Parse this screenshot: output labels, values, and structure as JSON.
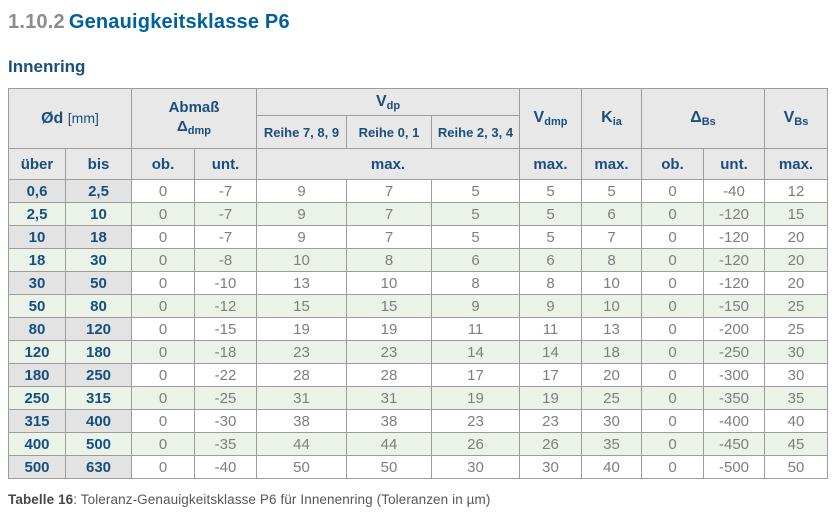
{
  "title": {
    "number": "1.10.2",
    "text": "Genauigkeitsklasse P6"
  },
  "section": {
    "heading": "Innenring"
  },
  "table": {
    "header": {
      "diameter": {
        "symbol": "Ød",
        "unit": "[mm]"
      },
      "abmass": {
        "line1": "Abmaß",
        "base": "Δ",
        "sub": "dmp"
      },
      "vdp": {
        "base": "V",
        "sub": "dp"
      },
      "reihe": [
        "Reihe 7, 8, 9",
        "Reihe 0, 1",
        "Reihe 2, 3, 4"
      ],
      "vdmp": {
        "base": "V",
        "sub": "dmp"
      },
      "kia": {
        "base": "K",
        "sub": "ia"
      },
      "dbs": {
        "base": "Δ",
        "sub": "Bs"
      },
      "vbs": {
        "base": "V",
        "sub": "Bs"
      }
    },
    "subheader": [
      "über",
      "bis",
      "ob.",
      "unt.",
      "max.",
      "max.",
      "max.",
      "ob.",
      "unt.",
      "max."
    ],
    "rows": [
      [
        "0,6",
        "2,5",
        "0",
        "-7",
        "9",
        "7",
        "5",
        "5",
        "5",
        "0",
        "-40",
        "12"
      ],
      [
        "2,5",
        "10",
        "0",
        "-7",
        "9",
        "7",
        "5",
        "5",
        "6",
        "0",
        "-120",
        "15"
      ],
      [
        "10",
        "18",
        "0",
        "-7",
        "9",
        "7",
        "5",
        "5",
        "7",
        "0",
        "-120",
        "20"
      ],
      [
        "18",
        "30",
        "0",
        "-8",
        "10",
        "8",
        "6",
        "6",
        "8",
        "0",
        "-120",
        "20"
      ],
      [
        "30",
        "50",
        "0",
        "-10",
        "13",
        "10",
        "8",
        "8",
        "10",
        "0",
        "-120",
        "20"
      ],
      [
        "50",
        "80",
        "0",
        "-12",
        "15",
        "15",
        "9",
        "9",
        "10",
        "0",
        "-150",
        "25"
      ],
      [
        "80",
        "120",
        "0",
        "-15",
        "19",
        "19",
        "11",
        "11",
        "13",
        "0",
        "-200",
        "25"
      ],
      [
        "120",
        "180",
        "0",
        "-18",
        "23",
        "23",
        "14",
        "14",
        "18",
        "0",
        "-250",
        "30"
      ],
      [
        "180",
        "250",
        "0",
        "-22",
        "28",
        "28",
        "17",
        "17",
        "20",
        "0",
        "-300",
        "30"
      ],
      [
        "250",
        "315",
        "0",
        "-25",
        "31",
        "31",
        "19",
        "19",
        "25",
        "0",
        "-350",
        "35"
      ],
      [
        "315",
        "400",
        "0",
        "-30",
        "38",
        "38",
        "23",
        "23",
        "30",
        "0",
        "-400",
        "40"
      ],
      [
        "400",
        "500",
        "0",
        "-35",
        "44",
        "44",
        "26",
        "26",
        "35",
        "0",
        "-450",
        "45"
      ],
      [
        "500",
        "630",
        "0",
        "-40",
        "50",
        "50",
        "30",
        "30",
        "40",
        "0",
        "-500",
        "50"
      ]
    ]
  },
  "caption": {
    "bold": "Tabelle 16",
    "rest": ": Toleranz-Genauigkeitsklasse P6 für Innenenring (Toleranzen in µm)"
  },
  "colors": {
    "title_blue": "#00609c",
    "navy": "#1a4e7d",
    "row_green": "#ebf3e9",
    "header_gray": "#e8e8e8",
    "label_gray": "#e3e3e3",
    "border_gray": "#9c9c9c",
    "data_gray": "#7e7e7e"
  }
}
